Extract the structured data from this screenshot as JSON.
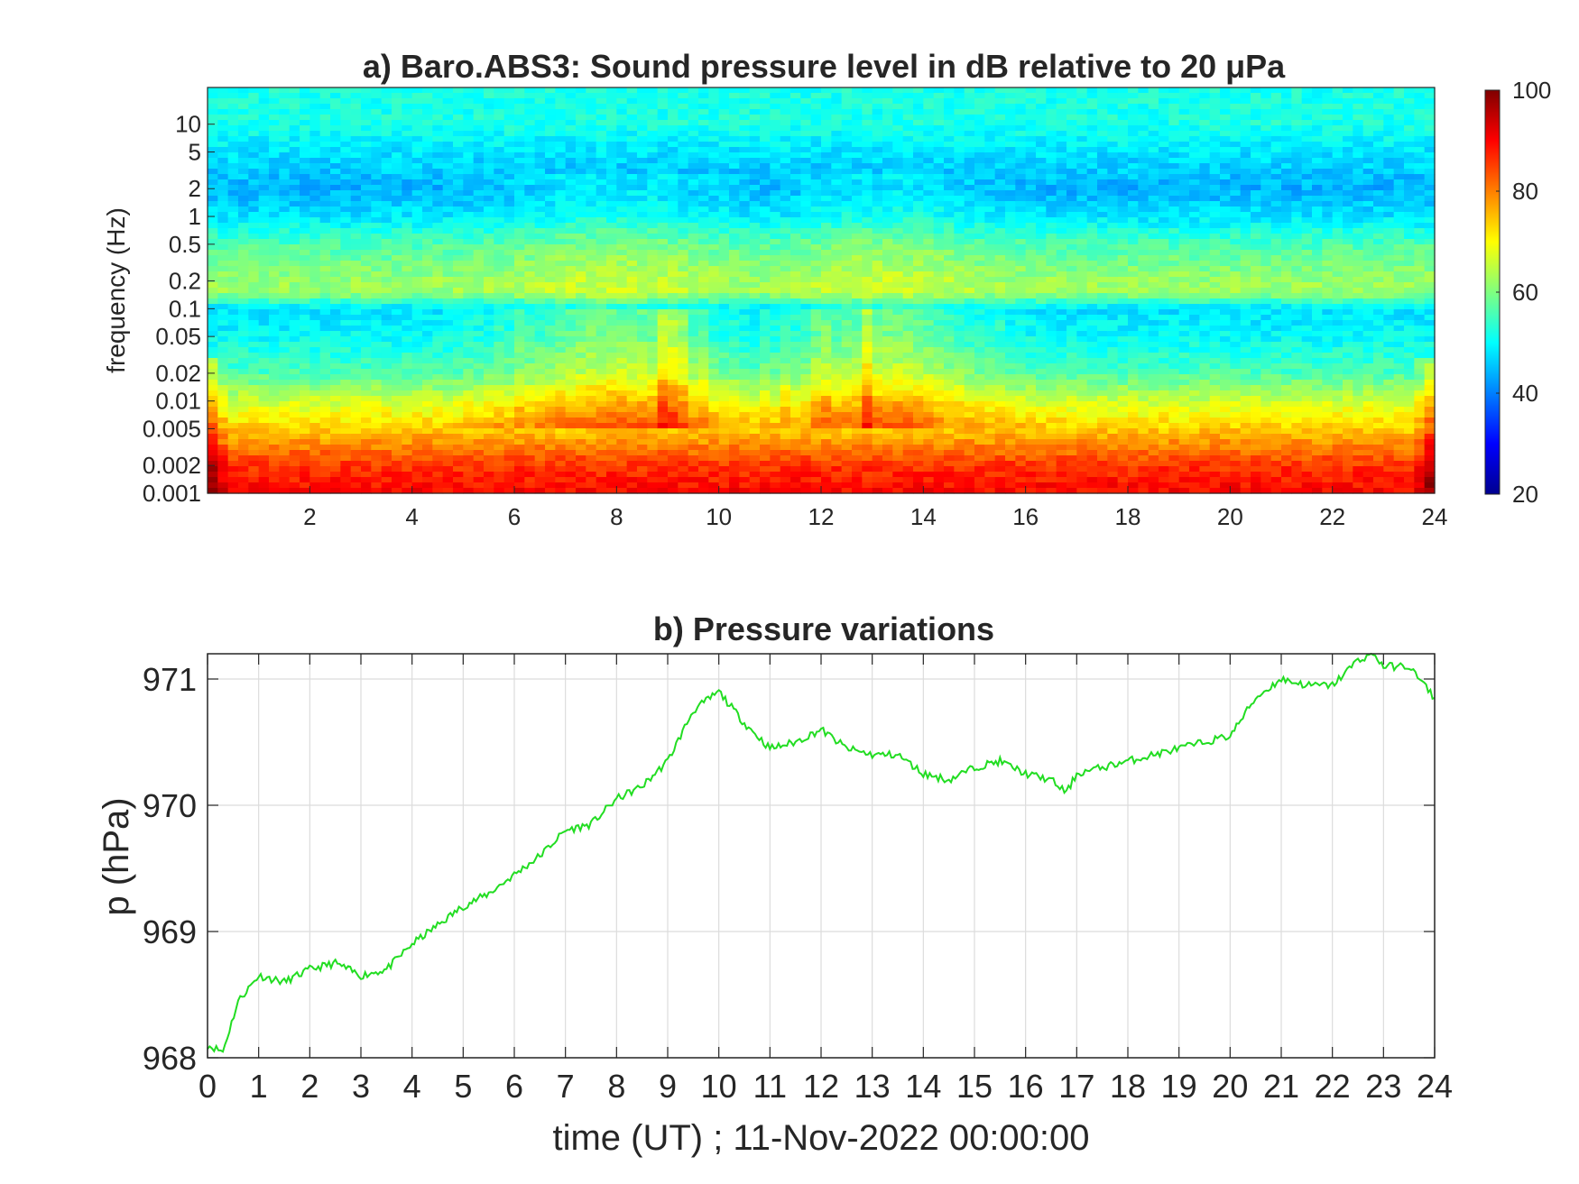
{
  "chart_data": [
    {
      "type": "heatmap",
      "title": "a) Baro.ABS3: Sound pressure level in dB relative to 20 μPa",
      "ylabel": "frequency (Hz)",
      "xlabel": "",
      "x_ticks": [
        "2",
        "4",
        "6",
        "8",
        "10",
        "12",
        "14",
        "16",
        "18",
        "20",
        "22",
        "24"
      ],
      "x_tick_values": [
        2,
        4,
        6,
        8,
        10,
        12,
        14,
        16,
        18,
        20,
        22,
        24
      ],
      "xlim": [
        0,
        24
      ],
      "y_ticks": [
        "0.001",
        "0.002",
        "0.005",
        "0.01",
        "0.02",
        "0.05",
        "0.1",
        "0.2",
        "0.5",
        "1",
        "2",
        "5",
        "10"
      ],
      "y_tick_values": [
        0.001,
        0.002,
        0.005,
        0.01,
        0.02,
        0.05,
        0.1,
        0.2,
        0.5,
        1,
        2,
        5,
        10
      ],
      "ylim": [
        0.001,
        25
      ],
      "y_scale": "log",
      "colormap": "jet",
      "colorbar": {
        "ticks": [
          "20",
          "40",
          "60",
          "80",
          "100"
        ],
        "tick_values": [
          20,
          40,
          60,
          80,
          100
        ],
        "range": [
          20,
          100
        ]
      },
      "level_profile_db": [
        {
          "freq": 0.001,
          "db": 90
        },
        {
          "freq": 0.002,
          "db": 86
        },
        {
          "freq": 0.005,
          "db": 74
        },
        {
          "freq": 0.01,
          "db": 66
        },
        {
          "freq": 0.02,
          "db": 56
        },
        {
          "freq": 0.05,
          "db": 50
        },
        {
          "freq": 0.1,
          "db": 48
        },
        {
          "freq": 0.15,
          "db": 62
        },
        {
          "freq": 0.2,
          "db": 62
        },
        {
          "freq": 0.5,
          "db": 56
        },
        {
          "freq": 1,
          "db": 48
        },
        {
          "freq": 2,
          "db": 44
        },
        {
          "freq": 5,
          "db": 48
        },
        {
          "freq": 10,
          "db": 52
        },
        {
          "freq": 25,
          "db": 52
        }
      ],
      "active_hours": [
        [
          6,
          10
        ],
        [
          11.5,
          15
        ]
      ]
    },
    {
      "type": "line",
      "title": "b) Pressure variations",
      "xlabel": "time (UT) ; 11-Nov-2022 00:00:00",
      "ylabel": "p (hPa)",
      "xlim": [
        0,
        24
      ],
      "ylim": [
        968,
        971.2
      ],
      "grid": true,
      "x_ticks": [
        "0",
        "1",
        "2",
        "3",
        "4",
        "5",
        "6",
        "7",
        "8",
        "9",
        "10",
        "11",
        "12",
        "13",
        "14",
        "15",
        "16",
        "17",
        "18",
        "19",
        "20",
        "21",
        "22",
        "23",
        "24"
      ],
      "y_ticks": [
        "968",
        "969",
        "970",
        "971"
      ],
      "y_tick_values": [
        968,
        969,
        970,
        971
      ],
      "line_color": "#22dd22",
      "x": [
        0,
        0.3,
        0.6,
        1.0,
        1.5,
        2.0,
        2.5,
        3.0,
        3.5,
        4.0,
        4.5,
        5.0,
        5.5,
        6.0,
        6.5,
        7.0,
        7.5,
        8.0,
        8.5,
        9.0,
        9.5,
        10.0,
        10.5,
        11.0,
        11.5,
        12.0,
        12.5,
        13.0,
        13.5,
        14.0,
        14.5,
        15.0,
        15.5,
        16.0,
        16.5,
        16.8,
        17.0,
        17.5,
        18.0,
        18.5,
        19.0,
        19.5,
        20.0,
        20.5,
        21.0,
        21.5,
        22.0,
        22.5,
        22.8,
        23.0,
        23.5,
        24.0
      ],
      "y": [
        968.1,
        968.05,
        968.45,
        968.65,
        968.6,
        968.7,
        968.75,
        968.65,
        968.7,
        968.9,
        969.05,
        969.2,
        969.3,
        969.45,
        969.6,
        969.8,
        969.85,
        970.05,
        970.15,
        970.35,
        970.75,
        970.9,
        970.65,
        970.45,
        970.5,
        970.6,
        970.45,
        970.4,
        970.4,
        970.25,
        970.2,
        970.3,
        970.35,
        970.25,
        970.2,
        970.1,
        970.25,
        970.3,
        970.35,
        970.4,
        970.45,
        970.5,
        970.55,
        970.85,
        971.0,
        970.95,
        970.95,
        971.15,
        971.2,
        971.1,
        971.1,
        970.85
      ]
    }
  ]
}
